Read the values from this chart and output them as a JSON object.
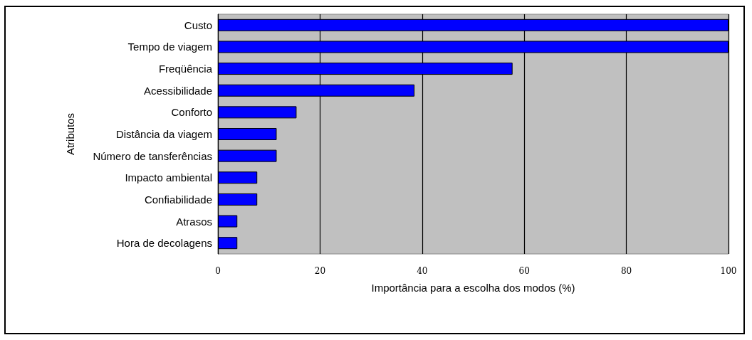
{
  "chart_data": {
    "type": "bar",
    "orientation": "horizontal",
    "categories": [
      "Custo",
      "Tempo de viagem",
      "Freqüência",
      "Acessibilidade",
      "Conforto",
      "Distância da viagem",
      "Número de tansferências",
      "Impacto ambiental",
      "Confiabilidade",
      "Atrasos",
      "Hora de decolagens"
    ],
    "values": [
      100,
      100,
      57.7,
      38.5,
      15.4,
      11.5,
      11.5,
      7.7,
      7.7,
      3.8,
      3.8
    ],
    "color": "#0000ff",
    "xlabel": "Importância para a escolha dos modos (%)",
    "ylabel": "Atributos",
    "xlim": [
      0,
      100
    ],
    "xticks": [
      0,
      20,
      40,
      60,
      80,
      100
    ],
    "grid": "x"
  }
}
